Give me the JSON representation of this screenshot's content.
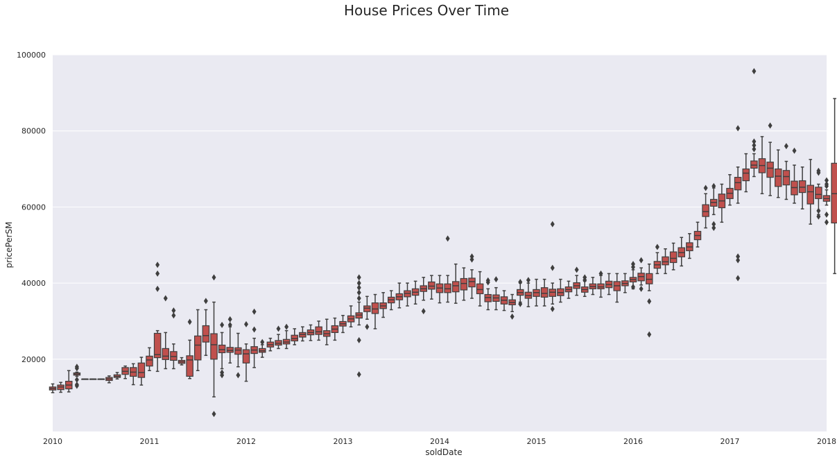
{
  "chart_data": {
    "type": "box",
    "title": "House Prices Over Time",
    "xlabel": "soldDate",
    "ylabel": "pricePerSM",
    "xlim": [
      "2010-01",
      "2018-01"
    ],
    "ylim": [
      1000,
      100000
    ],
    "x_ticks": [
      "2010",
      "2011",
      "2012",
      "2013",
      "2014",
      "2015",
      "2016",
      "2017",
      "2018"
    ],
    "y_ticks": [
      20000,
      40000,
      60000,
      80000,
      100000
    ],
    "y_tick_labels": [
      "20000",
      "40000",
      "60000",
      "80000",
      "100000"
    ],
    "grid": true,
    "box_color": "#c0504d",
    "line_color": "#3f3f3f",
    "background_color": "#eaeaf2",
    "grid_color": "#ffffff",
    "boxes": [
      {
        "month": "2010-01",
        "q1": 11900,
        "median": 12300,
        "q3": 12700,
        "lo": 11200,
        "hi": 13500,
        "outliers": []
      },
      {
        "month": "2010-02",
        "q1": 12000,
        "median": 12700,
        "q3": 13200,
        "lo": 11300,
        "hi": 13900,
        "outliers": []
      },
      {
        "month": "2010-03",
        "q1": 12200,
        "median": 13200,
        "q3": 14200,
        "lo": 11400,
        "hi": 17000,
        "outliers": []
      },
      {
        "month": "2010-04",
        "q1": 15800,
        "median": 16100,
        "q3": 16400,
        "lo": 15500,
        "hi": 16600,
        "outliers": [
          18000,
          17600,
          14600,
          13300,
          13000
        ]
      },
      {
        "month": "2010-05",
        "q1": 14800,
        "median": 14800,
        "q3": 14800,
        "lo": 14800,
        "hi": 14800,
        "outliers": []
      },
      {
        "month": "2010-06",
        "q1": 14800,
        "median": 14800,
        "q3": 14800,
        "lo": 14800,
        "hi": 14800,
        "outliers": []
      },
      {
        "month": "2010-07",
        "q1": 14800,
        "median": 14800,
        "q3": 14800,
        "lo": 14800,
        "hi": 14800,
        "outliers": []
      },
      {
        "month": "2010-08",
        "q1": 14400,
        "median": 14800,
        "q3": 15200,
        "lo": 13800,
        "hi": 15600,
        "outliers": []
      },
      {
        "month": "2010-09",
        "q1": 15200,
        "median": 15500,
        "q3": 15900,
        "lo": 14800,
        "hi": 16500,
        "outliers": []
      },
      {
        "month": "2010-10",
        "q1": 16000,
        "median": 16800,
        "q3": 17800,
        "lo": 14900,
        "hi": 18200,
        "outliers": []
      },
      {
        "month": "2010-11",
        "q1": 15500,
        "median": 16600,
        "q3": 17800,
        "lo": 13300,
        "hi": 18800,
        "outliers": []
      },
      {
        "month": "2010-12",
        "q1": 15200,
        "median": 16500,
        "q3": 19000,
        "lo": 13200,
        "hi": 20500,
        "outliers": []
      },
      {
        "month": "2011-01",
        "q1": 18200,
        "median": 19800,
        "q3": 20800,
        "lo": 17000,
        "hi": 23000,
        "outliers": []
      },
      {
        "month": "2011-02",
        "q1": 20400,
        "median": 21200,
        "q3": 26800,
        "lo": 16800,
        "hi": 27500,
        "outliers": [
          44800,
          42500,
          38500
        ]
      },
      {
        "month": "2011-03",
        "q1": 19900,
        "median": 20800,
        "q3": 22800,
        "lo": 17500,
        "hi": 27000,
        "outliers": [
          36000
        ]
      },
      {
        "month": "2011-04",
        "q1": 19700,
        "median": 20700,
        "q3": 22000,
        "lo": 17500,
        "hi": 24000,
        "outliers": [
          32800,
          31500
        ]
      },
      {
        "month": "2011-05",
        "q1": 18900,
        "median": 19300,
        "q3": 19700,
        "lo": 18500,
        "hi": 20400,
        "outliers": []
      },
      {
        "month": "2011-06",
        "q1": 15500,
        "median": 19800,
        "q3": 20900,
        "lo": 14900,
        "hi": 25000,
        "outliers": [
          29800
        ]
      },
      {
        "month": "2011-07",
        "q1": 19800,
        "median": 23700,
        "q3": 26100,
        "lo": 17000,
        "hi": 33000,
        "outliers": []
      },
      {
        "month": "2011-08",
        "q1": 24500,
        "median": 26200,
        "q3": 28800,
        "lo": 21000,
        "hi": 33000,
        "outliers": [
          35300
        ]
      },
      {
        "month": "2011-09",
        "q1": 20000,
        "median": 23800,
        "q3": 26700,
        "lo": 10100,
        "hi": 35000,
        "outliers": [
          41500,
          5600
        ]
      },
      {
        "month": "2011-10",
        "q1": 21700,
        "median": 22500,
        "q3": 23700,
        "lo": 17500,
        "hi": 27000,
        "outliers": [
          29000,
          16500,
          15800
        ]
      },
      {
        "month": "2011-11",
        "q1": 21800,
        "median": 22300,
        "q3": 23100,
        "lo": 19000,
        "hi": 28500,
        "outliers": [
          30500,
          29000
        ]
      },
      {
        "month": "2011-12",
        "q1": 21300,
        "median": 22400,
        "q3": 23000,
        "lo": 18000,
        "hi": 26800,
        "outliers": [
          15800
        ]
      },
      {
        "month": "2012-01",
        "q1": 19000,
        "median": 21400,
        "q3": 22500,
        "lo": 14200,
        "hi": 24000,
        "outliers": [
          29200
        ]
      },
      {
        "month": "2012-02",
        "q1": 21500,
        "median": 22400,
        "q3": 23300,
        "lo": 17800,
        "hi": 25500,
        "outliers": [
          32500,
          27800
        ]
      },
      {
        "month": "2012-03",
        "q1": 21800,
        "median": 22200,
        "q3": 22800,
        "lo": 20500,
        "hi": 23800,
        "outliers": [
          24500
        ]
      },
      {
        "month": "2012-04",
        "q1": 23200,
        "median": 23800,
        "q3": 24500,
        "lo": 22200,
        "hi": 25500,
        "outliers": []
      },
      {
        "month": "2012-05",
        "q1": 23700,
        "median": 24200,
        "q3": 24900,
        "lo": 22800,
        "hi": 26500,
        "outliers": [
          28000
        ]
      },
      {
        "month": "2012-06",
        "q1": 24000,
        "median": 24500,
        "q3": 25200,
        "lo": 22800,
        "hi": 27500,
        "outliers": [
          28500
        ]
      },
      {
        "month": "2012-07",
        "q1": 24800,
        "median": 25400,
        "q3": 26300,
        "lo": 23800,
        "hi": 28000,
        "outliers": []
      },
      {
        "month": "2012-08",
        "q1": 25800,
        "median": 26500,
        "q3": 27000,
        "lo": 24800,
        "hi": 28500,
        "outliers": []
      },
      {
        "month": "2012-09",
        "q1": 26400,
        "median": 27000,
        "q3": 27700,
        "lo": 24900,
        "hi": 29000,
        "outliers": []
      },
      {
        "month": "2012-10",
        "q1": 26500,
        "median": 27200,
        "q3": 28500,
        "lo": 25000,
        "hi": 30000,
        "outliers": []
      },
      {
        "month": "2012-11",
        "q1": 26000,
        "median": 26700,
        "q3": 27500,
        "lo": 23800,
        "hi": 30500,
        "outliers": []
      },
      {
        "month": "2012-12",
        "q1": 27000,
        "median": 27900,
        "q3": 28800,
        "lo": 25000,
        "hi": 30800,
        "outliers": []
      },
      {
        "month": "2013-01",
        "q1": 28700,
        "median": 29300,
        "q3": 29900,
        "lo": 27000,
        "hi": 31500,
        "outliers": []
      },
      {
        "month": "2013-02",
        "q1": 29800,
        "median": 30600,
        "q3": 31400,
        "lo": 28500,
        "hi": 34000,
        "outliers": []
      },
      {
        "month": "2013-03",
        "q1": 30800,
        "median": 31600,
        "q3": 32200,
        "lo": 29000,
        "hi": 35000,
        "outliers": [
          41500,
          40000,
          38800,
          37500,
          36000,
          25000,
          16000
        ]
      },
      {
        "month": "2013-04",
        "q1": 32500,
        "median": 33400,
        "q3": 34000,
        "lo": 30500,
        "hi": 36500,
        "outliers": [
          28500
        ]
      },
      {
        "month": "2013-05",
        "q1": 32000,
        "median": 33200,
        "q3": 34800,
        "lo": 28000,
        "hi": 37000,
        "outliers": []
      },
      {
        "month": "2013-06",
        "q1": 33300,
        "median": 34000,
        "q3": 34800,
        "lo": 31000,
        "hi": 37500,
        "outliers": []
      },
      {
        "month": "2013-07",
        "q1": 34800,
        "median": 35600,
        "q3": 36300,
        "lo": 33000,
        "hi": 38000,
        "outliers": []
      },
      {
        "month": "2013-08",
        "q1": 35600,
        "median": 36400,
        "q3": 37200,
        "lo": 33500,
        "hi": 40000,
        "outliers": []
      },
      {
        "month": "2013-09",
        "q1": 36400,
        "median": 37300,
        "q3": 38000,
        "lo": 34000,
        "hi": 40000,
        "outliers": []
      },
      {
        "month": "2013-10",
        "q1": 36800,
        "median": 37600,
        "q3": 38500,
        "lo": 34500,
        "hi": 40500,
        "outliers": []
      },
      {
        "month": "2013-11",
        "q1": 37800,
        "median": 38500,
        "q3": 39300,
        "lo": 35500,
        "hi": 41500,
        "outliers": [
          32600
        ]
      },
      {
        "month": "2013-12",
        "q1": 38400,
        "median": 39200,
        "q3": 40300,
        "lo": 35800,
        "hi": 42000,
        "outliers": []
      },
      {
        "month": "2014-01",
        "q1": 37500,
        "median": 38700,
        "q3": 39800,
        "lo": 34800,
        "hi": 42000,
        "outliers": []
      },
      {
        "month": "2014-02",
        "q1": 37500,
        "median": 38500,
        "q3": 39800,
        "lo": 35000,
        "hi": 42000,
        "outliers": [
          51700
        ]
      },
      {
        "month": "2014-03",
        "q1": 37700,
        "median": 39300,
        "q3": 40400,
        "lo": 34700,
        "hi": 45000,
        "outliers": []
      },
      {
        "month": "2014-04",
        "q1": 38200,
        "median": 39900,
        "q3": 41200,
        "lo": 35500,
        "hi": 44000,
        "outliers": []
      },
      {
        "month": "2014-05",
        "q1": 39000,
        "median": 40400,
        "q3": 41300,
        "lo": 36000,
        "hi": 43500,
        "outliers": [
          47000,
          46200
        ]
      },
      {
        "month": "2014-06",
        "q1": 37200,
        "median": 38300,
        "q3": 39800,
        "lo": 34000,
        "hi": 43000,
        "outliers": []
      },
      {
        "month": "2014-07",
        "q1": 35100,
        "median": 36200,
        "q3": 37000,
        "lo": 33000,
        "hi": 38500,
        "outliers": [
          40700,
          40200
        ]
      },
      {
        "month": "2014-08",
        "q1": 35200,
        "median": 36100,
        "q3": 36900,
        "lo": 33000,
        "hi": 38800,
        "outliers": [
          41000
        ]
      },
      {
        "month": "2014-09",
        "q1": 34500,
        "median": 35500,
        "q3": 36400,
        "lo": 32800,
        "hi": 38000,
        "outliers": []
      },
      {
        "month": "2014-10",
        "q1": 34300,
        "median": 34900,
        "q3": 35600,
        "lo": 32500,
        "hi": 37000,
        "outliers": [
          31200
        ]
      },
      {
        "month": "2014-11",
        "q1": 36800,
        "median": 37500,
        "q3": 38300,
        "lo": 35000,
        "hi": 40000,
        "outliers": [
          40300,
          34500
        ]
      },
      {
        "month": "2014-12",
        "q1": 36000,
        "median": 36700,
        "q3": 37600,
        "lo": 33800,
        "hi": 40000,
        "outliers": [
          40800
        ]
      },
      {
        "month": "2015-01",
        "q1": 36500,
        "median": 37500,
        "q3": 38300,
        "lo": 34000,
        "hi": 41000,
        "outliers": []
      },
      {
        "month": "2015-02",
        "q1": 36300,
        "median": 37300,
        "q3": 38800,
        "lo": 34000,
        "hi": 41000,
        "outliers": []
      },
      {
        "month": "2015-03",
        "q1": 36500,
        "median": 37600,
        "q3": 38400,
        "lo": 34500,
        "hi": 40000,
        "outliers": [
          55500,
          44000,
          33200
        ]
      },
      {
        "month": "2015-04",
        "q1": 36700,
        "median": 37500,
        "q3": 38500,
        "lo": 35000,
        "hi": 41000,
        "outliers": []
      },
      {
        "month": "2015-05",
        "q1": 37700,
        "median": 38300,
        "q3": 39000,
        "lo": 36000,
        "hi": 40500,
        "outliers": []
      },
      {
        "month": "2015-06",
        "q1": 38600,
        "median": 39300,
        "q3": 40100,
        "lo": 36800,
        "hi": 42000,
        "outliers": [
          43500
        ]
      },
      {
        "month": "2015-07",
        "q1": 37600,
        "median": 38300,
        "q3": 39000,
        "lo": 36500,
        "hi": 40500,
        "outliers": [
          41500,
          40800
        ]
      },
      {
        "month": "2015-08",
        "q1": 38500,
        "median": 39100,
        "q3": 39800,
        "lo": 37000,
        "hi": 41500,
        "outliers": []
      },
      {
        "month": "2015-09",
        "q1": 38500,
        "median": 39000,
        "q3": 39800,
        "lo": 36300,
        "hi": 42000,
        "outliers": [
          42500
        ]
      },
      {
        "month": "2015-10",
        "q1": 38800,
        "median": 39600,
        "q3": 40500,
        "lo": 37000,
        "hi": 42500,
        "outliers": []
      },
      {
        "month": "2015-11",
        "q1": 38000,
        "median": 39300,
        "q3": 40400,
        "lo": 35000,
        "hi": 42500,
        "outliers": []
      },
      {
        "month": "2015-12",
        "q1": 39300,
        "median": 39900,
        "q3": 40600,
        "lo": 37500,
        "hi": 42500,
        "outliers": []
      },
      {
        "month": "2016-01",
        "q1": 40300,
        "median": 40900,
        "q3": 41500,
        "lo": 38500,
        "hi": 43500,
        "outliers": [
          45000,
          44200,
          39000
        ]
      },
      {
        "month": "2016-02",
        "q1": 40600,
        "median": 41700,
        "q3": 42600,
        "lo": 39500,
        "hi": 44000,
        "outliers": [
          46000,
          38500
        ]
      },
      {
        "month": "2016-03",
        "q1": 39800,
        "median": 41000,
        "q3": 42500,
        "lo": 38000,
        "hi": 45000,
        "outliers": [
          35200,
          26500
        ]
      },
      {
        "month": "2016-04",
        "q1": 43900,
        "median": 44800,
        "q3": 45700,
        "lo": 42500,
        "hi": 48000,
        "outliers": [
          49500
        ]
      },
      {
        "month": "2016-05",
        "q1": 44800,
        "median": 45600,
        "q3": 46900,
        "lo": 42500,
        "hi": 49000,
        "outliers": []
      },
      {
        "month": "2016-06",
        "q1": 45400,
        "median": 46500,
        "q3": 48200,
        "lo": 43500,
        "hi": 50500,
        "outliers": []
      },
      {
        "month": "2016-07",
        "q1": 46900,
        "median": 48000,
        "q3": 49300,
        "lo": 44500,
        "hi": 52000,
        "outliers": []
      },
      {
        "month": "2016-08",
        "q1": 48500,
        "median": 49500,
        "q3": 50600,
        "lo": 46500,
        "hi": 53000,
        "outliers": []
      },
      {
        "month": "2016-09",
        "q1": 51400,
        "median": 52500,
        "q3": 53600,
        "lo": 49500,
        "hi": 56000,
        "outliers": []
      },
      {
        "month": "2016-10",
        "q1": 57500,
        "median": 58800,
        "q3": 60600,
        "lo": 54500,
        "hi": 63500,
        "outliers": [
          65000
        ]
      },
      {
        "month": "2016-11",
        "q1": 60200,
        "median": 61200,
        "q3": 62000,
        "lo": 58000,
        "hi": 65000,
        "outliers": [
          65500,
          55500,
          54500
        ]
      },
      {
        "month": "2016-12",
        "q1": 59800,
        "median": 61600,
        "q3": 63400,
        "lo": 56000,
        "hi": 66000,
        "outliers": []
      },
      {
        "month": "2017-01",
        "q1": 62200,
        "median": 63600,
        "q3": 64900,
        "lo": 60500,
        "hi": 68500,
        "outliers": []
      },
      {
        "month": "2017-02",
        "q1": 64500,
        "median": 66400,
        "q3": 67800,
        "lo": 61000,
        "hi": 70500,
        "outliers": [
          80700,
          47000,
          46000,
          41300
        ]
      },
      {
        "month": "2017-03",
        "q1": 66900,
        "median": 68900,
        "q3": 70000,
        "lo": 64000,
        "hi": 74000,
        "outliers": []
      },
      {
        "month": "2017-04",
        "q1": 70200,
        "median": 71000,
        "q3": 72100,
        "lo": 68000,
        "hi": 74000,
        "outliers": [
          95700,
          77200,
          76200,
          75200
        ]
      },
      {
        "month": "2017-05",
        "q1": 69000,
        "median": 70900,
        "q3": 72700,
        "lo": 63500,
        "hi": 78500,
        "outliers": []
      },
      {
        "month": "2017-06",
        "q1": 67800,
        "median": 70200,
        "q3": 71800,
        "lo": 63000,
        "hi": 77000,
        "outliers": [
          81400
        ]
      },
      {
        "month": "2017-07",
        "q1": 65400,
        "median": 68100,
        "q3": 70000,
        "lo": 62500,
        "hi": 75000,
        "outliers": []
      },
      {
        "month": "2017-08",
        "q1": 65800,
        "median": 68000,
        "q3": 69600,
        "lo": 62000,
        "hi": 72000,
        "outliers": [
          76000
        ]
      },
      {
        "month": "2017-09",
        "q1": 63200,
        "median": 65100,
        "q3": 66800,
        "lo": 61000,
        "hi": 71000,
        "outliers": [
          74800
        ]
      },
      {
        "month": "2017-10",
        "q1": 63800,
        "median": 65200,
        "q3": 66900,
        "lo": 59500,
        "hi": 70500,
        "outliers": []
      },
      {
        "month": "2017-11",
        "q1": 60800,
        "median": 64000,
        "q3": 65700,
        "lo": 55500,
        "hi": 72500,
        "outliers": []
      },
      {
        "month": "2017-12",
        "q1": 62200,
        "median": 63300,
        "q3": 65200,
        "lo": 58000,
        "hi": 66000,
        "outliers": [
          69500,
          69000,
          59000,
          57500
        ]
      },
      {
        "month": "2018-01",
        "q1": 61500,
        "median": 62200,
        "q3": 63000,
        "lo": 60500,
        "hi": 64500,
        "outliers": [
          67000,
          66000,
          65500,
          58000,
          56000
        ]
      },
      {
        "month": "2018-02",
        "q1": 55800,
        "median": 63500,
        "q3": 71500,
        "lo": 42500,
        "hi": 88500,
        "outliers": []
      }
    ]
  }
}
